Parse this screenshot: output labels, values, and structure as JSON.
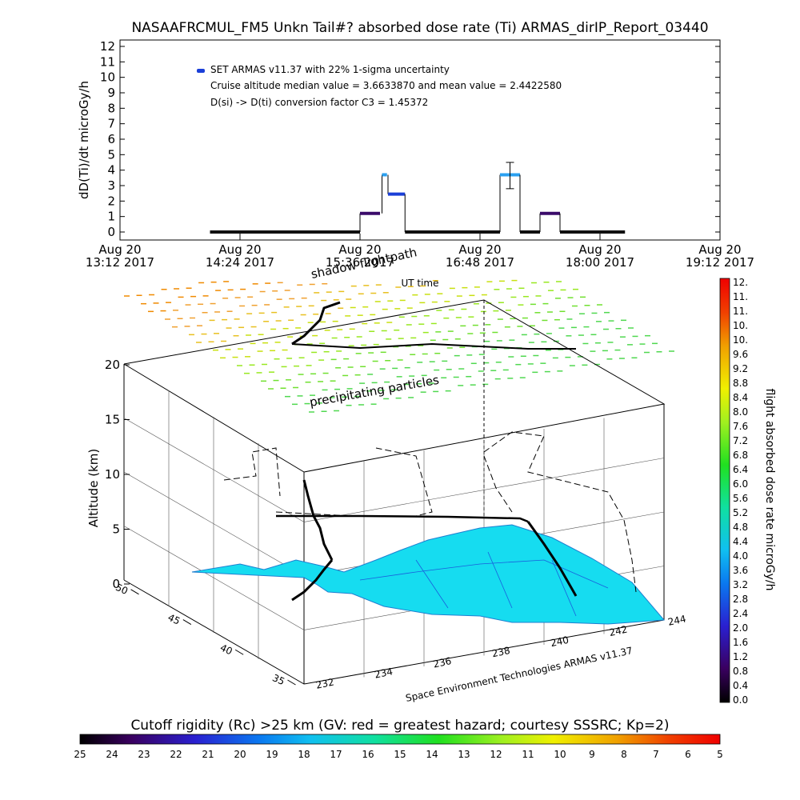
{
  "title": "NASAAFRCMUL_FM5 Unkn Tail#? absorbed dose rate (Ti) ARMAS_dirIP_Report_03440",
  "top_panel": {
    "ylabel": "dD(Ti)/dt microGy/h",
    "yticks": [
      "0",
      "1",
      "2",
      "3",
      "4",
      "5",
      "6",
      "7",
      "8",
      "9",
      "10",
      "11",
      "12"
    ],
    "xticks": [
      {
        "day": "Aug 20",
        "time": "13:12 2017"
      },
      {
        "day": "Aug 20",
        "time": "14:24 2017"
      },
      {
        "day": "Aug 20",
        "time": "15:36 2017"
      },
      {
        "day": "Aug 20",
        "time": "16:48 2017"
      },
      {
        "day": "Aug 20",
        "time": "18:00 2017"
      },
      {
        "day": "Aug 20",
        "time": "19:12 2017"
      }
    ],
    "xlabel": "UT time",
    "legend_text": "SET ARMAS v11.37 with 22% 1-sigma uncertainty",
    "legend_color": "#1a3fd8",
    "annotation_1": "Cruise altitude median value = 3.6633870 and mean value = 2.4422580",
    "annotation_2": "D(si) -> D(ti) conversion factor C3 = 1.45372"
  },
  "chart_data": [
    {
      "type": "line",
      "title": "NASAAFRCMUL_FM5 Unkn Tail#? absorbed dose rate (Ti) ARMAS_dirIP_Report_03440",
      "xlabel": "UT time",
      "ylabel": "dD(Ti)/dt microGy/h",
      "x_unit": "hours UT (Aug 20 2017)",
      "xlim": [
        13.2,
        19.2
      ],
      "ylim": [
        0,
        12
      ],
      "series": [
        {
          "segments": [
            {
              "x0": 14.1,
              "x1": 15.6,
              "y": 0.0
            },
            {
              "x0": 15.6,
              "x1": 15.8,
              "y": 1.2
            },
            {
              "x0": 15.82,
              "x1": 15.87,
              "y": 3.7
            },
            {
              "x0": 15.88,
              "x1": 16.05,
              "y": 2.45
            },
            {
              "x0": 16.05,
              "x1": 17.0,
              "y": 0.0
            },
            {
              "x0": 17.0,
              "x1": 17.2,
              "y": 3.7,
              "err_low": 2.8,
              "err_high": 4.5
            },
            {
              "x0": 17.2,
              "x1": 17.4,
              "y": 0.0
            },
            {
              "x0": 17.4,
              "x1": 17.6,
              "y": 1.2
            },
            {
              "x0": 17.6,
              "x1": 18.25,
              "y": 0.0
            }
          ]
        }
      ]
    },
    {
      "type": "scatter",
      "subtype": "3d-flightpath",
      "zlabel": "Altitude (km)",
      "zticks": [
        "0",
        "5",
        "10",
        "15",
        "20"
      ],
      "lat_ticks": [
        "35",
        "40",
        "45",
        "50"
      ],
      "lon_ticks": [
        "232",
        "234",
        "236",
        "238",
        "240",
        "242",
        "244"
      ],
      "annotations": [
        "shadow flightpath",
        "precipitating particles",
        "Space Environment Technologies ARMAS v11.37"
      ],
      "surface_color": "#16dcf0",
      "particles_color_scale": "green-yellow-orange with altitude"
    }
  ],
  "dose_colorbar": {
    "label": "flight absorbed dose rate microGy/h",
    "ticks": [
      "0.0",
      "0.4",
      "0.8",
      "1.2",
      "1.6",
      "2.0",
      "2.4",
      "2.8",
      "3.2",
      "3.6",
      "4.0",
      "4.4",
      "4.8",
      "5.2",
      "5.6",
      "6.0",
      "6.4",
      "6.8",
      "7.2",
      "7.6",
      "8.0",
      "8.4",
      "8.8",
      "9.2",
      "9.6",
      "10.",
      "10.",
      "11.",
      "11.",
      "12."
    ]
  },
  "rigidity_colorbar": {
    "label": "Cutoff rigidity (Rc) >25 km (GV: red = greatest hazard; courtesy SSSRC; Kp=2)",
    "ticks": [
      "25",
      "24",
      "23",
      "22",
      "21",
      "20",
      "19",
      "18",
      "17",
      "16",
      "15",
      "14",
      "13",
      "12",
      "11",
      "10",
      "9",
      "8",
      "7",
      "6",
      "5"
    ]
  }
}
